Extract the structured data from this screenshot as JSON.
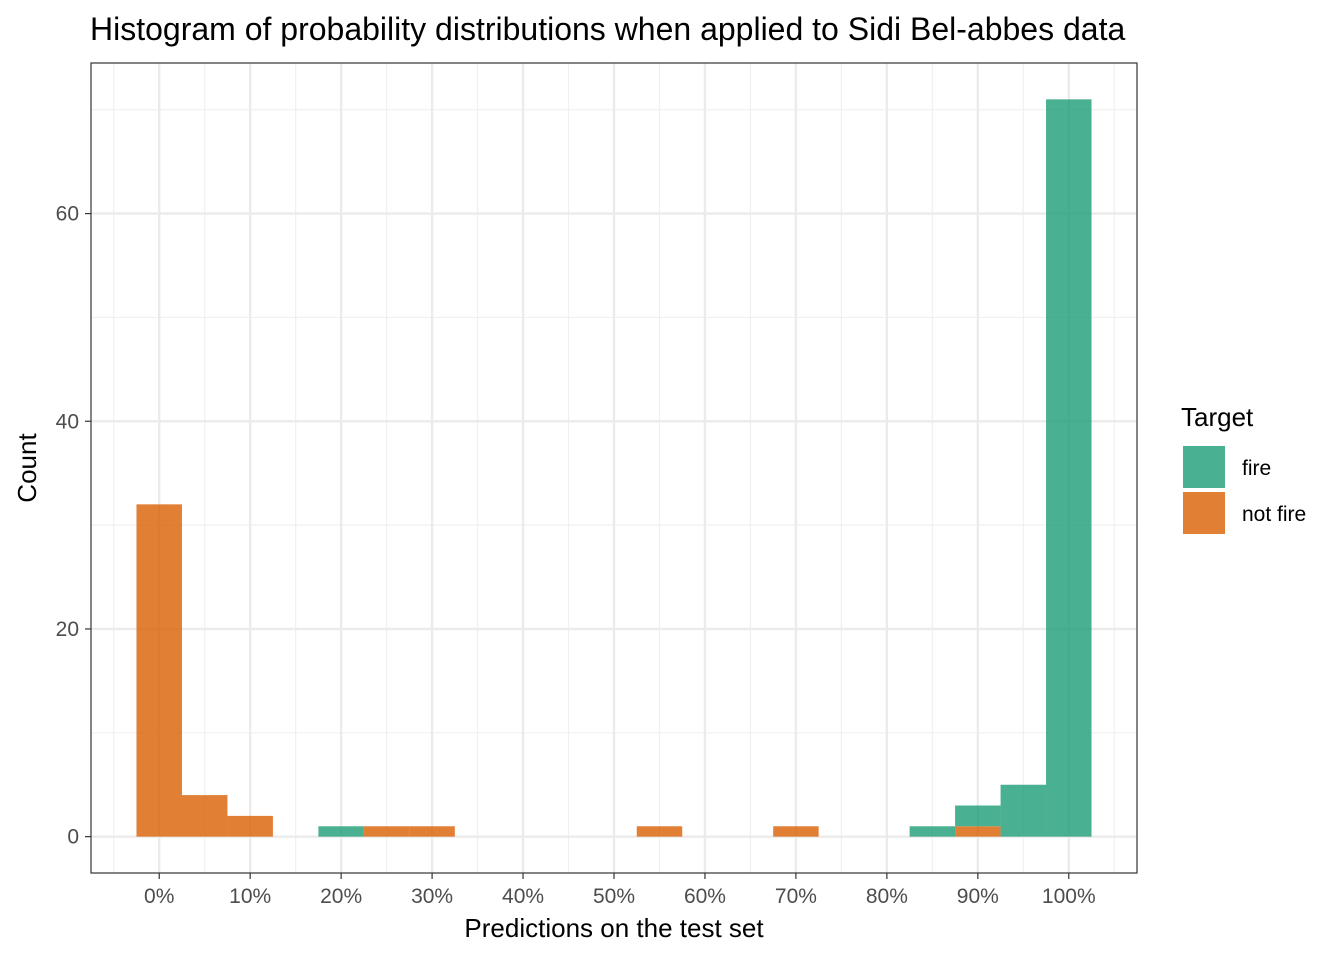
{
  "chart_data": {
    "type": "bar",
    "title": "Histogram of probability distributions when applied to Sidi Bel-abbes data",
    "xlabel": "Predictions on the test set",
    "ylabel": "Count",
    "xlim": [
      -0.075,
      1.075
    ],
    "ylim": [
      -3.5,
      74.5
    ],
    "x_ticks": [
      0,
      0.1,
      0.2,
      0.3,
      0.4,
      0.5,
      0.6,
      0.7,
      0.8,
      0.9,
      1.0
    ],
    "x_tick_labels": [
      "0%",
      "10%",
      "20%",
      "30%",
      "40%",
      "50%",
      "60%",
      "70%",
      "80%",
      "90%",
      "100%"
    ],
    "y_ticks": [
      0,
      20,
      40,
      60
    ],
    "y_tick_labels": [
      "0",
      "20",
      "40",
      "60"
    ],
    "bin_width": 0.05,
    "grid": true,
    "legend": {
      "title": "Target",
      "position": "right"
    },
    "series": [
      {
        "name": "fire",
        "color": "#1b9e77",
        "bins": [
          {
            "x": 0.2,
            "count": 1
          },
          {
            "x": 0.85,
            "count": 1
          },
          {
            "x": 0.9,
            "count": 2
          },
          {
            "x": 0.95,
            "count": 5
          },
          {
            "x": 1.0,
            "count": 71
          }
        ]
      },
      {
        "name": "not fire",
        "color": "#d95f02",
        "bins": [
          {
            "x": 0.0,
            "count": 32
          },
          {
            "x": 0.05,
            "count": 4
          },
          {
            "x": 0.1,
            "count": 2
          },
          {
            "x": 0.25,
            "count": 1
          },
          {
            "x": 0.3,
            "count": 1
          },
          {
            "x": 0.55,
            "count": 1
          },
          {
            "x": 0.7,
            "count": 1
          },
          {
            "x": 0.9,
            "count": 1
          }
        ]
      }
    ]
  }
}
